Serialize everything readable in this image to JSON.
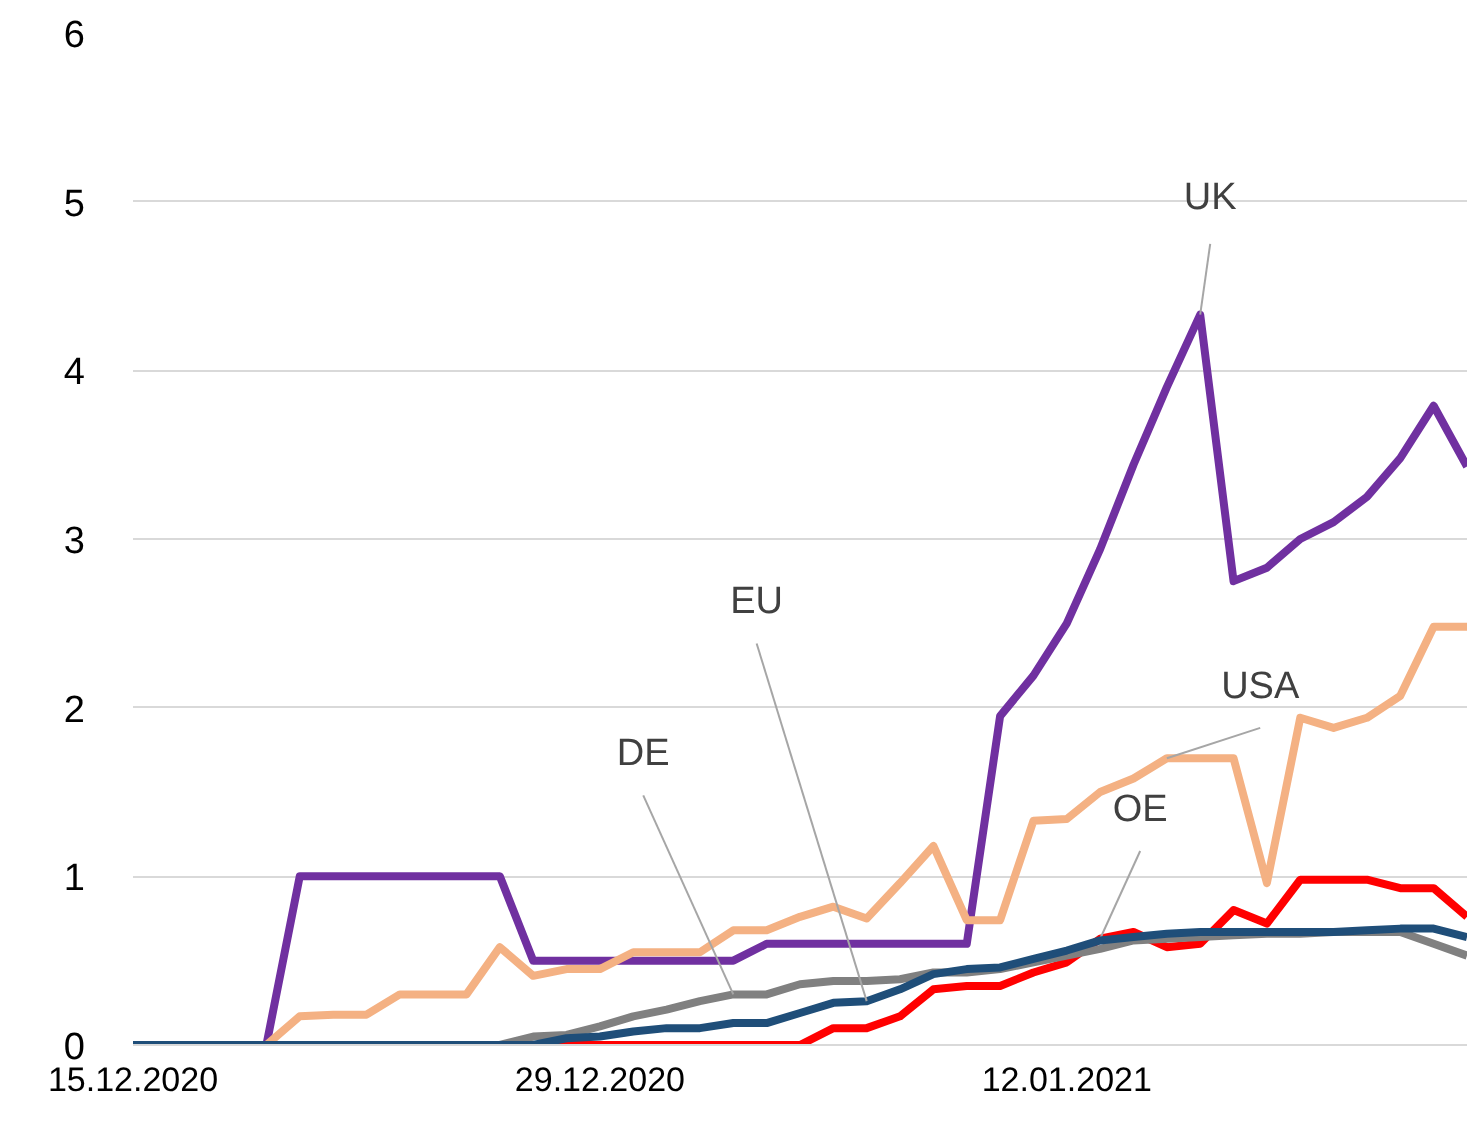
{
  "chart_data": {
    "type": "line",
    "x": [
      "2020-12-15",
      "2020-12-16",
      "2020-12-17",
      "2020-12-18",
      "2020-12-19",
      "2020-12-20",
      "2020-12-21",
      "2020-12-22",
      "2020-12-23",
      "2020-12-24",
      "2020-12-25",
      "2020-12-26",
      "2020-12-27",
      "2020-12-28",
      "2020-12-29",
      "2020-12-30",
      "2020-12-31",
      "2021-01-01",
      "2021-01-02",
      "2021-01-03",
      "2021-01-04",
      "2021-01-05",
      "2021-01-06",
      "2021-01-07",
      "2021-01-08",
      "2021-01-09",
      "2021-01-10",
      "2021-01-11",
      "2021-01-12",
      "2021-01-13",
      "2021-01-14",
      "2021-01-15",
      "2021-01-16",
      "2021-01-17",
      "2021-01-18",
      "2021-01-19",
      "2021-01-20",
      "2021-01-21",
      "2021-01-22",
      "2021-01-23",
      "2021-01-24"
    ],
    "series": [
      {
        "name": "UK",
        "color": "#7030a0",
        "values": [
          null,
          null,
          null,
          0,
          0,
          1,
          1,
          1,
          1,
          1,
          1,
          1,
          0.5,
          0.5,
          0.5,
          0.5,
          0.5,
          0.5,
          0.5,
          0.6,
          0.6,
          0.6,
          0.6,
          0.6,
          0.6,
          0.6,
          1.95,
          2.19,
          2.5,
          2.94,
          3.44,
          3.9,
          4.33,
          2.75,
          2.83,
          3.0,
          3.1,
          3.25,
          3.48,
          3.79,
          3.43
        ]
      },
      {
        "name": "USA",
        "color": "#f4b183",
        "values": [
          null,
          null,
          null,
          0,
          0,
          0.17,
          0.18,
          0.18,
          0.3,
          0.3,
          0.3,
          0.58,
          0.41,
          0.45,
          0.45,
          0.55,
          0.55,
          0.55,
          0.68,
          0.68,
          0.76,
          0.82,
          0.75,
          0.96,
          1.18,
          0.74,
          0.74,
          1.33,
          1.34,
          1.5,
          1.58,
          1.7,
          1.7,
          1.7,
          0.96,
          1.94,
          1.88,
          1.94,
          2.07,
          2.48,
          2.48
        ]
      },
      {
        "name": "OE",
        "color": "#ff0000",
        "values": [
          null,
          null,
          null,
          0,
          0,
          0,
          0,
          0,
          0,
          0,
          0,
          0,
          0,
          0,
          0,
          0,
          0,
          0,
          0,
          0,
          0,
          0.1,
          0.1,
          0.17,
          0.33,
          0.35,
          0.35,
          0.43,
          0.49,
          0.63,
          0.67,
          0.58,
          0.6,
          0.8,
          0.72,
          0.98,
          0.98,
          0.98,
          0.93,
          0.93,
          0.76
        ]
      },
      {
        "name": "DE",
        "color": "#808080",
        "values": [
          null,
          null,
          null,
          0,
          0,
          0,
          0,
          0,
          0,
          0,
          0,
          0,
          0.05,
          0.06,
          0.11,
          0.17,
          0.21,
          0.26,
          0.3,
          0.3,
          0.36,
          0.38,
          0.38,
          0.39,
          0.43,
          0.43,
          0.45,
          0.49,
          0.53,
          0.57,
          0.62,
          0.63,
          0.64,
          0.65,
          0.66,
          0.66,
          0.67,
          0.67,
          0.67,
          0.6,
          0.53
        ]
      },
      {
        "name": "EU",
        "color": "#1f4e79",
        "values": [
          0,
          0,
          0,
          0,
          0,
          0,
          0,
          0,
          0,
          0,
          0,
          0,
          0,
          0.04,
          0.05,
          0.08,
          0.1,
          0.1,
          0.13,
          0.13,
          0.19,
          0.25,
          0.26,
          0.33,
          0.42,
          0.45,
          0.46,
          0.51,
          0.56,
          0.62,
          0.64,
          0.66,
          0.67,
          0.67,
          0.67,
          0.67,
          0.67,
          0.68,
          0.69,
          0.69,
          0.64
        ]
      }
    ],
    "xlim": [
      "2020-12-15",
      "2021-01-24"
    ],
    "xticks": [
      {
        "value": "2020-12-15",
        "label": "15.12.2020"
      },
      {
        "value": "2020-12-29",
        "label": "29.12.2020"
      },
      {
        "value": "2021-01-12",
        "label": "12.01.2021"
      }
    ],
    "ylim": [
      0,
      6
    ],
    "yticks": [
      0,
      1,
      2,
      3,
      4,
      5,
      6
    ],
    "grid": "y",
    "legend": false,
    "marker": "none",
    "line_style": "solid"
  }
}
